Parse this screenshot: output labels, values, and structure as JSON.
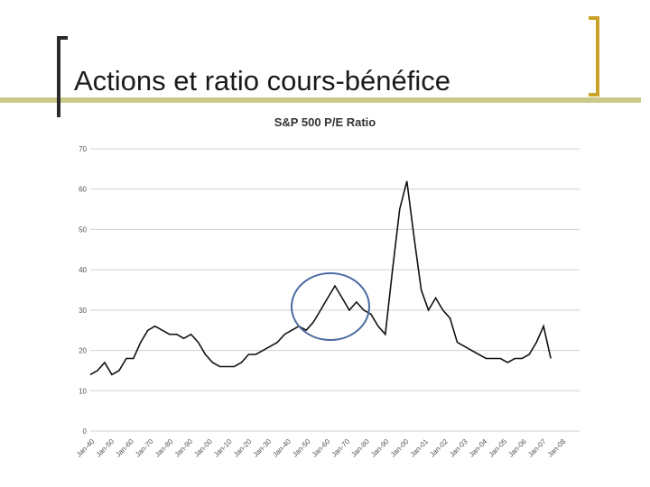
{
  "slide": {
    "title": "Actions et ratio cours-bénéfice",
    "accent_color": "#c9c98a",
    "bracket_dark": "#2a2a2a",
    "bracket_gold": "#c9a227"
  },
  "chart_data": {
    "type": "line",
    "title": "S&P 500 P/E Ratio",
    "xlabel": "",
    "ylabel": "",
    "ylim": [
      0,
      70
    ],
    "yticks": [
      0,
      10,
      20,
      30,
      40,
      50,
      60,
      70
    ],
    "ytick_labels": [
      "0",
      "10",
      "20",
      "30",
      "40",
      "50",
      "60",
      "70"
    ],
    "grid": true,
    "legend": "none",
    "series_color": "#111111",
    "annotation": {
      "shape": "ellipse",
      "color": "#4a6aa0",
      "period": "Jan-89 to Jan-00"
    },
    "xtick_labels": [
      "Jan-40",
      "Jan-50",
      "Jan-60",
      "Jan-70",
      "Jan-80",
      "Jan-90",
      "Jan-00",
      "Jan-10",
      "Jan-20",
      "Jan-30",
      "Jan-40",
      "Jan-50",
      "Jan-60",
      "Jan-70",
      "Jan-80",
      "Jan-90",
      "Jan-00",
      "Jan-01",
      "Jan-02",
      "Jan-03",
      "Jan-04",
      "Jan-05",
      "Jan-06",
      "Jan-07",
      "Jan-08"
    ],
    "series": [
      {
        "x": [
          1940,
          1941,
          1942,
          1943,
          1944,
          1945,
          1946,
          1947,
          1948,
          1949,
          1950,
          1951,
          1952,
          1953,
          1954,
          1955,
          1956,
          1957,
          1958,
          1959,
          1960,
          1961,
          1962,
          1963,
          1964,
          1965,
          1966,
          1967,
          1968,
          1969,
          1970,
          1971,
          1972,
          1973,
          1974,
          1975,
          1976,
          1977,
          1978,
          1979,
          1980,
          1981,
          1982,
          1983,
          1984,
          1985,
          1986,
          1987,
          1988,
          1989,
          1990,
          1991,
          1992,
          1993,
          1994,
          1995,
          1996,
          1997,
          1998,
          1999,
          2000,
          2001,
          2002,
          2003,
          2004,
          2005,
          2006,
          2007,
          2008
        ],
        "values": [
          14,
          15,
          17,
          14,
          15,
          18,
          18,
          22,
          25,
          26,
          25,
          24,
          24,
          23,
          24,
          22,
          19,
          17,
          16,
          16,
          16,
          17,
          19,
          19,
          20,
          21,
          22,
          24,
          25,
          26,
          25,
          27,
          30,
          33,
          36,
          33,
          30,
          32,
          30,
          29,
          26,
          24,
          40,
          55,
          62,
          48,
          35,
          30,
          33,
          30,
          28,
          22,
          21,
          20,
          19,
          18,
          18,
          18,
          17,
          18,
          18,
          19,
          22,
          26,
          18,
          null,
          null,
          null,
          null
        ]
      }
    ]
  }
}
